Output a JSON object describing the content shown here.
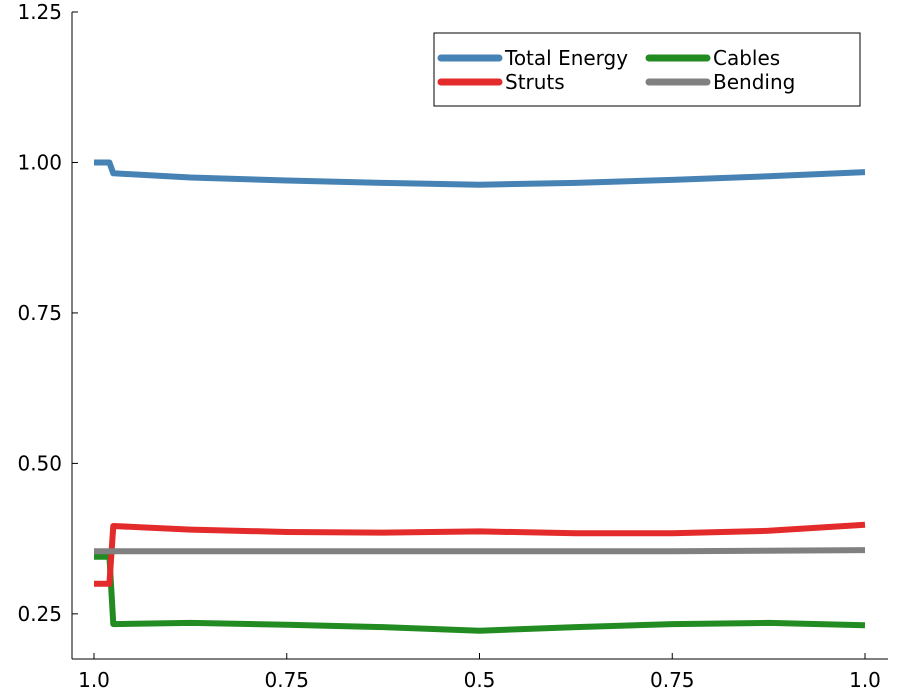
{
  "chart_data": {
    "type": "line",
    "x_tick_labels": [
      "1.0",
      "0.75",
      "0.5",
      "0.75",
      "1.0"
    ],
    "x_tick_positions": [
      0,
      1,
      2,
      3,
      4
    ],
    "xlim": [
      0,
      4
    ],
    "ylim": [
      0.175,
      1.25
    ],
    "y_ticks": [
      0.25,
      0.5,
      0.75,
      1.0,
      1.25
    ],
    "y_tick_labels": [
      "0.25",
      "0.50",
      "0.75",
      "1.00",
      "1.25"
    ],
    "grid": false,
    "legend_position": "top-right",
    "series": [
      {
        "name": "Total Energy",
        "color": "#4682b4",
        "points": [
          [
            0,
            1.0
          ],
          [
            0.08,
            1.0
          ],
          [
            0.1,
            0.982
          ],
          [
            0.5,
            0.975
          ],
          [
            1.0,
            0.97
          ],
          [
            1.5,
            0.966
          ],
          [
            2.0,
            0.963
          ],
          [
            2.5,
            0.966
          ],
          [
            3.0,
            0.971
          ],
          [
            3.5,
            0.977
          ],
          [
            4.0,
            0.984
          ]
        ]
      },
      {
        "name": "Cables",
        "color": "#228b22",
        "points": [
          [
            0,
            0.345
          ],
          [
            0.08,
            0.345
          ],
          [
            0.1,
            0.233
          ],
          [
            0.5,
            0.235
          ],
          [
            1.0,
            0.232
          ],
          [
            1.5,
            0.228
          ],
          [
            2.0,
            0.222
          ],
          [
            2.5,
            0.228
          ],
          [
            3.0,
            0.233
          ],
          [
            3.5,
            0.235
          ],
          [
            4.0,
            0.231
          ]
        ]
      },
      {
        "name": "Struts",
        "color": "#e32b2b",
        "points": [
          [
            0,
            0.3
          ],
          [
            0.08,
            0.3
          ],
          [
            0.1,
            0.396
          ],
          [
            0.5,
            0.39
          ],
          [
            1.0,
            0.386
          ],
          [
            1.5,
            0.385
          ],
          [
            2.0,
            0.387
          ],
          [
            2.5,
            0.384
          ],
          [
            3.0,
            0.384
          ],
          [
            3.5,
            0.388
          ],
          [
            4.0,
            0.398
          ]
        ]
      },
      {
        "name": "Bending",
        "color": "#808080",
        "points": [
          [
            0,
            0.354
          ],
          [
            0.1,
            0.354
          ],
          [
            1.0,
            0.354
          ],
          [
            2.0,
            0.354
          ],
          [
            3.0,
            0.354
          ],
          [
            4.0,
            0.356
          ]
        ]
      }
    ]
  }
}
